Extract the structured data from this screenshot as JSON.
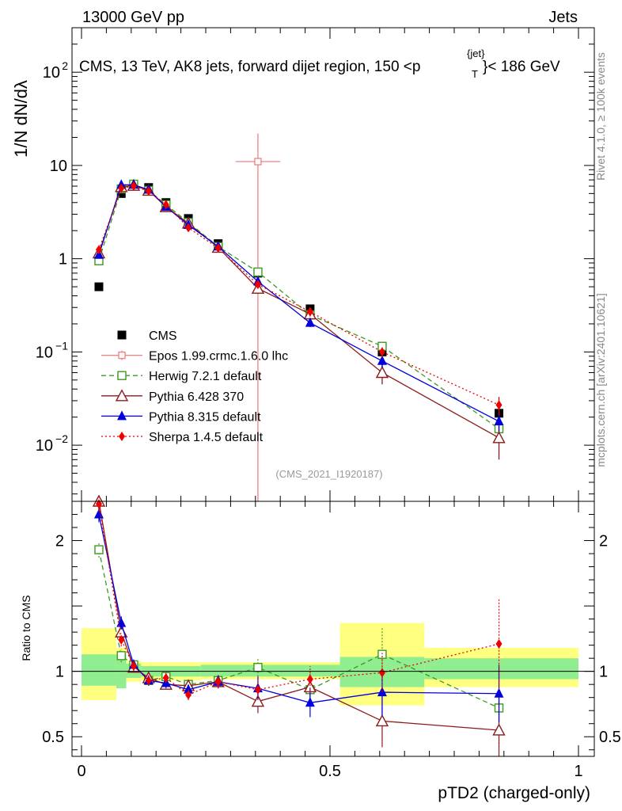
{
  "header": {
    "left": "13000 GeV pp",
    "right": "Jets",
    "title_main": "CMS, 13 TeV, AK8 jets, forward dijet region, 150 <p",
    "title_sub": "T",
    "title_sup": "{jet}",
    "title_end": "}< 186 GeV"
  },
  "side": {
    "rivet": "Rivet 4.1.0, ≥ 100k events",
    "mcplots": "mcplots.cern.ch [arXiv:2401.10621]"
  },
  "analysis_id": "(CMS_2021_I1920187)",
  "ylabel_top": "1/N dN/dλ",
  "ylabel_ratio": "Ratio to CMS",
  "xlabel": "pTD2 (charged-only)",
  "colors": {
    "band_inner": "#90ee90",
    "band_outer": "#ffff80"
  },
  "chart_data": {
    "type": "scatter",
    "x_range": [
      0,
      1
    ],
    "y_range_top": [
      0.0025,
      300
    ],
    "y_scale_top": "log",
    "y_range_ratio": [
      0.35,
      2.3
    ],
    "ratio_ref": 1,
    "x_ticks": [
      {
        "v": 0,
        "label": "0"
      },
      {
        "v": 0.5,
        "label": "0.5"
      },
      {
        "v": 1,
        "label": "1"
      }
    ],
    "y_ticks_top": [
      {
        "v": 0.01,
        "base": "10",
        "exp": "−2"
      },
      {
        "v": 0.1,
        "base": "10",
        "exp": "−1"
      },
      {
        "v": 1,
        "base": "1",
        "exp": ""
      },
      {
        "v": 10,
        "base": "10",
        "exp": ""
      },
      {
        "v": 100,
        "base": "10",
        "exp": "2"
      }
    ],
    "y_ticks_ratio": [
      {
        "v": 0.5,
        "label": "0.5"
      },
      {
        "v": 1,
        "label": "1"
      },
      {
        "v": 2,
        "label": "2"
      }
    ],
    "bins": [
      {
        "lo": 0.0,
        "hi": 0.07,
        "inner": [
          0.89,
          1.13
        ],
        "outer": [
          0.78,
          1.33
        ]
      },
      {
        "lo": 0.07,
        "hi": 0.09,
        "inner": [
          0.87,
          1.13
        ],
        "outer": [
          0.87,
          1.18
        ]
      },
      {
        "lo": 0.09,
        "hi": 0.12,
        "inner": [
          0.95,
          1.06
        ],
        "outer": [
          0.92,
          1.08
        ]
      },
      {
        "lo": 0.12,
        "hi": 0.24,
        "inner": [
          0.96,
          1.04
        ],
        "outer": [
          0.93,
          1.07
        ]
      },
      {
        "lo": 0.24,
        "hi": 0.52,
        "inner": [
          0.96,
          1.05
        ],
        "outer": [
          0.94,
          1.07
        ]
      },
      {
        "lo": 0.52,
        "hi": 0.69,
        "inner": [
          0.88,
          1.11
        ],
        "outer": [
          0.74,
          1.37
        ]
      },
      {
        "lo": 0.69,
        "hi": 1.0,
        "inner": [
          0.94,
          1.1
        ],
        "outer": [
          0.88,
          1.18
        ]
      }
    ],
    "legend_position": "center-left",
    "series": [
      {
        "name": "CMS",
        "color": "#000000",
        "marker": "square-filled",
        "dash": "none",
        "is_data": true,
        "x": [
          0.035,
          0.08,
          0.105,
          0.135,
          0.17,
          0.215,
          0.275,
          0.355,
          0.46,
          0.605,
          0.84
        ],
        "y": [
          0.5,
          5.0,
          6.0,
          5.8,
          4.0,
          2.7,
          1.45,
          0.7,
          0.29,
          0.1,
          0.022
        ],
        "yerr": [
          0,
          0,
          0,
          0,
          0,
          0,
          0,
          0,
          0,
          0,
          0.004
        ]
      },
      {
        "name": "Epos 1.99.crmc.1.6.0 lhc",
        "color": "#f08080",
        "marker": "cross-open",
        "dash": "solid",
        "is_data": false,
        "x": [
          0.355
        ],
        "xerr": [
          0.045
        ],
        "y": [
          11
        ],
        "yerr_lo": [
          11
        ],
        "yerr_hi": [
          11
        ],
        "ratio": [],
        "ratio_x": [],
        "ratio_err": []
      },
      {
        "name": "Herwig 7.2.1 default",
        "color": "#3c9a1e",
        "marker": "square-open",
        "dash": "6,4",
        "is_data": false,
        "x": [
          0.035,
          0.08,
          0.105,
          0.135,
          0.17,
          0.215,
          0.275,
          0.355,
          0.46,
          0.605,
          0.84
        ],
        "y": [
          0.95,
          5.6,
          6.3,
          5.4,
          3.8,
          2.45,
          1.35,
          0.72,
          0.25,
          0.115,
          0.015
        ],
        "yerr": [
          0.05,
          0.15,
          0.15,
          0.15,
          0.1,
          0.08,
          0.05,
          0.05,
          0.02,
          0.012,
          0.003
        ],
        "ratio_x": [
          0.035,
          0.08,
          0.105,
          0.135,
          0.17,
          0.215,
          0.275,
          0.355,
          0.46,
          0.605,
          0.84
        ],
        "ratio": [
          1.93,
          1.12,
          1.05,
          0.93,
          0.96,
          0.9,
          0.93,
          1.03,
          0.86,
          1.13,
          0.72
        ],
        "ratio_err": [
          0.06,
          0.05,
          0.04,
          0.03,
          0.03,
          0.03,
          0.04,
          0.07,
          0.07,
          0.2,
          0.3
        ]
      },
      {
        "name": "Pythia 6.428 370",
        "color": "#8b1a1a",
        "marker": "triangle-open",
        "dash": "solid",
        "is_data": false,
        "x": [
          0.035,
          0.08,
          0.105,
          0.135,
          0.17,
          0.215,
          0.275,
          0.355,
          0.46,
          0.605,
          0.84
        ],
        "y": [
          1.15,
          5.9,
          6.1,
          5.4,
          3.6,
          2.4,
          1.32,
          0.48,
          0.255,
          0.06,
          0.012
        ],
        "yerr": [
          0.05,
          0.15,
          0.15,
          0.15,
          0.1,
          0.08,
          0.05,
          0.06,
          0.03,
          0.015,
          0.005
        ],
        "ratio_x": [
          0.035,
          0.08,
          0.105,
          0.135,
          0.17,
          0.215,
          0.275,
          0.355,
          0.46,
          0.605,
          0.84
        ],
        "ratio": [
          2.3,
          1.3,
          1.03,
          0.95,
          0.9,
          0.89,
          0.92,
          0.77,
          0.88,
          0.62,
          0.55
        ],
        "ratio_err": [
          0.06,
          0.05,
          0.04,
          0.04,
          0.04,
          0.04,
          0.05,
          0.09,
          0.1,
          0.2,
          0.25
        ]
      },
      {
        "name": "Pythia 8.315 default",
        "color": "#0000dd",
        "marker": "triangle-filled",
        "dash": "solid",
        "is_data": false,
        "x": [
          0.035,
          0.08,
          0.105,
          0.135,
          0.17,
          0.215,
          0.275,
          0.355,
          0.46,
          0.605,
          0.84
        ],
        "y": [
          1.1,
          6.2,
          6.2,
          5.5,
          3.6,
          2.3,
          1.35,
          0.57,
          0.205,
          0.08,
          0.018
        ],
        "yerr": [
          0.05,
          0.15,
          0.15,
          0.15,
          0.1,
          0.08,
          0.05,
          0.05,
          0.02,
          0.012,
          0.004
        ],
        "ratio_x": [
          0.035,
          0.08,
          0.105,
          0.135,
          0.17,
          0.215,
          0.275,
          0.355,
          0.46,
          0.605,
          0.84
        ],
        "ratio": [
          2.2,
          1.37,
          1.05,
          0.93,
          0.91,
          0.86,
          0.92,
          0.87,
          0.76,
          0.84,
          0.83
        ],
        "ratio_err": [
          0.06,
          0.05,
          0.04,
          0.04,
          0.04,
          0.04,
          0.05,
          0.09,
          0.11,
          0.18,
          0.22
        ]
      },
      {
        "name": "Sherpa 1.4.5 default",
        "color": "#ee0000",
        "marker": "diamond-filled",
        "dash": "2,3",
        "is_data": false,
        "x": [
          0.035,
          0.08,
          0.105,
          0.135,
          0.17,
          0.215,
          0.275,
          0.355,
          0.46,
          0.605,
          0.84
        ],
        "y": [
          1.25,
          5.7,
          6.0,
          5.3,
          3.8,
          2.15,
          1.3,
          0.53,
          0.27,
          0.1,
          0.027
        ],
        "yerr": [
          0.05,
          0.15,
          0.15,
          0.15,
          0.1,
          0.08,
          0.05,
          0.05,
          0.03,
          0.012,
          0.006
        ],
        "ratio_x": [
          0.035,
          0.08,
          0.105,
          0.135,
          0.17,
          0.215,
          0.275,
          0.355,
          0.46,
          0.605,
          0.84
        ],
        "ratio": [
          2.28,
          1.24,
          1.04,
          0.93,
          0.95,
          0.82,
          0.92,
          0.86,
          0.94,
          0.99,
          1.21
        ],
        "ratio_err": [
          0.06,
          0.05,
          0.04,
          0.04,
          0.04,
          0.04,
          0.05,
          0.08,
          0.1,
          0.15,
          0.35
        ]
      }
    ]
  }
}
